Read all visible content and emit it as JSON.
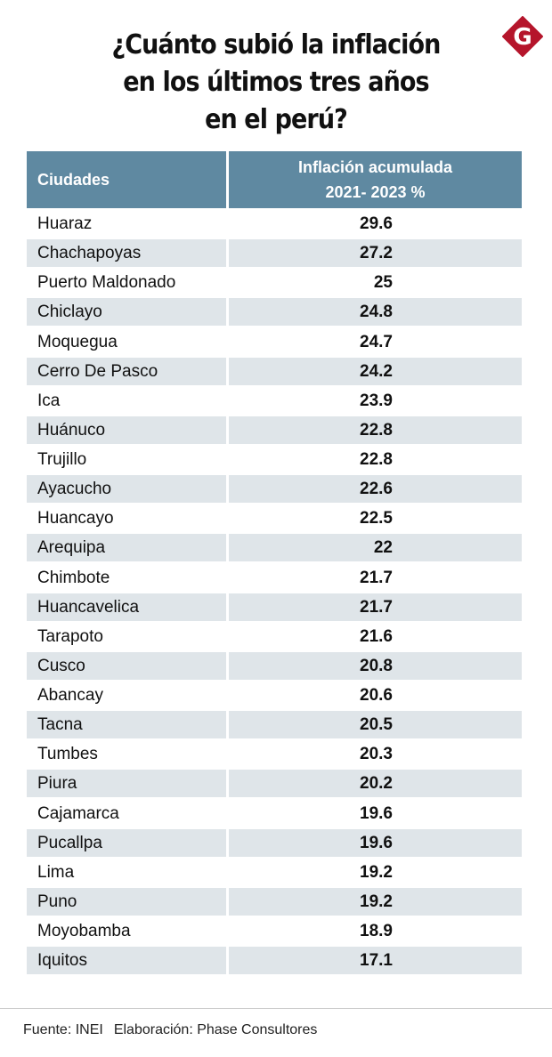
{
  "title": [
    "¿Cuánto subió la inflación",
    "en los últimos tres años",
    "en el perú?"
  ],
  "logo": {
    "letter": "G",
    "color": "#b5152b"
  },
  "colors": {
    "header": "#5f89a1",
    "alt_row": "#dfe5e9"
  },
  "chart_data": {
    "type": "table",
    "columns": [
      "Ciudades",
      "Inflación acumulada",
      "2021- 2023 %"
    ],
    "rows": [
      {
        "city": "Huaraz",
        "value": "29.6"
      },
      {
        "city": "Chachapoyas",
        "value": "27.2"
      },
      {
        "city": "Puerto Maldonado",
        "value": "25"
      },
      {
        "city": "Chiclayo",
        "value": "24.8"
      },
      {
        "city": "Moquegua",
        "value": "24.7"
      },
      {
        "city": "Cerro De Pasco",
        "value": "24.2"
      },
      {
        "city": "Ica",
        "value": "23.9"
      },
      {
        "city": "Huánuco",
        "value": "22.8"
      },
      {
        "city": "Trujillo",
        "value": "22.8"
      },
      {
        "city": "Ayacucho",
        "value": "22.6"
      },
      {
        "city": "Huancayo",
        "value": "22.5"
      },
      {
        "city": "Arequipa",
        "value": "22"
      },
      {
        "city": "Chimbote",
        "value": "21.7"
      },
      {
        "city": "Huancavelica",
        "value": "21.7"
      },
      {
        "city": "Tarapoto",
        "value": "21.6"
      },
      {
        "city": "Cusco",
        "value": "20.8"
      },
      {
        "city": "Abancay",
        "value": "20.6"
      },
      {
        "city": "Tacna",
        "value": "20.5"
      },
      {
        "city": "Tumbes",
        "value": "20.3"
      },
      {
        "city": "Piura",
        "value": "20.2"
      },
      {
        "city": "Cajamarca",
        "value": "19.6"
      },
      {
        "city": "Pucallpa",
        "value": "19.6"
      },
      {
        "city": "Lima",
        "value": "19.2"
      },
      {
        "city": "Puno",
        "value": "19.2"
      },
      {
        "city": "Moyobamba",
        "value": "18.9"
      },
      {
        "city": "Iquitos",
        "value": "17.1"
      }
    ]
  },
  "footer": {
    "source": "Fuente: INEI",
    "credit": "Elaboración: Phase Consultores"
  }
}
